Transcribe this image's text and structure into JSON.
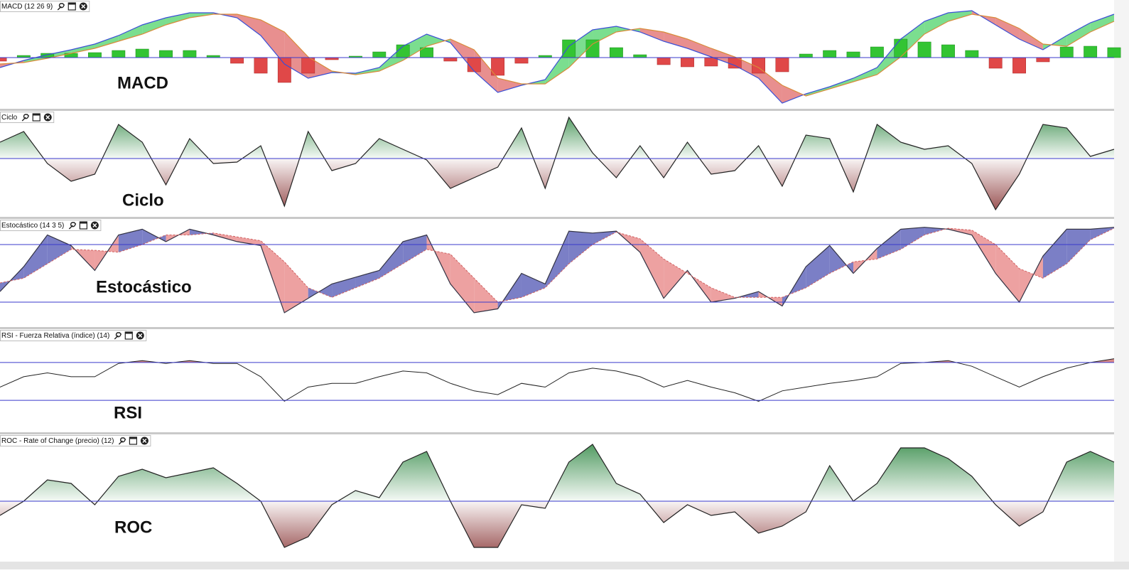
{
  "chart_data": [
    {
      "type": "macd",
      "title": "MACD (12 26 9)",
      "annotation": "MACD",
      "ylim": [
        -70,
        80
      ],
      "hlines": [
        0
      ],
      "hline_color": "#3a3acc",
      "up_color": "#4fd36a",
      "down_color": "#e06a6a",
      "series": [
        {
          "color": "#3b4fd6",
          "values": [
            -14,
            -4,
            4,
            11,
            19,
            31,
            46,
            56,
            63,
            63,
            56,
            31,
            -9,
            -29,
            -21,
            -22,
            -14,
            16,
            33,
            21,
            -19,
            -49,
            -39,
            -31,
            16,
            39,
            44,
            36,
            23,
            13,
            1,
            -11,
            -29,
            -64,
            -51,
            -41,
            -29,
            -14,
            26,
            51,
            63,
            66,
            46,
            26,
            11,
            31,
            49,
            61
          ]
        },
        {
          "color": "#d98b3a",
          "values": [
            -9,
            -7,
            -1,
            6,
            13,
            23,
            33,
            46,
            56,
            61,
            61,
            53,
            36,
            1,
            -19,
            -24,
            -19,
            -4,
            16,
            26,
            11,
            -29,
            -37,
            -37,
            -14,
            19,
            36,
            41,
            36,
            26,
            13,
            1,
            -14,
            -39,
            -54,
            -44,
            -34,
            -24,
            1,
            33,
            51,
            61,
            56,
            41,
            19,
            16,
            36,
            51
          ]
        }
      ],
      "histogram": {
        "up_color": "#33c433",
        "down_color": "#e04848",
        "values": [
          -5,
          3,
          6,
          6,
          7,
          10,
          12,
          10,
          10,
          3,
          -8,
          -22,
          -35,
          -22,
          -3,
          2,
          8,
          18,
          14,
          -5,
          -20,
          -25,
          -8,
          3,
          25,
          25,
          14,
          4,
          -10,
          -13,
          -12,
          -15,
          -22,
          -20,
          5,
          10,
          8,
          15,
          26,
          22,
          18,
          10,
          -15,
          -22,
          -6,
          15,
          16,
          14
        ]
      }
    },
    {
      "type": "area",
      "title": "Ciclo",
      "annotation": "Ciclo",
      "ylim": [
        -80,
        65
      ],
      "hlines": [
        0
      ],
      "hline_color": "#3a3acc",
      "up_color": "#3d8f4f",
      "down_color": "#8b3a3a",
      "series": [
        {
          "color": "#222222",
          "values": [
            23,
            38,
            -7,
            -32,
            -22,
            48,
            23,
            -37,
            28,
            -7,
            -5,
            18,
            -67,
            38,
            -17,
            -7,
            28,
            13,
            -2,
            -42,
            -27,
            -12,
            43,
            -42,
            58,
            8,
            -27,
            18,
            -27,
            23,
            -22,
            -17,
            18,
            -39,
            33,
            28,
            -47,
            48,
            23,
            13,
            18,
            -7,
            -72,
            -22,
            48,
            43,
            3,
            13
          ]
        }
      ]
    },
    {
      "type": "stochastic",
      "title": "Estocástico (14 3 5)",
      "annotation": "Estocástico",
      "ylim": [
        0,
        100
      ],
      "hlines": [
        80,
        20
      ],
      "hline_color": "#3a3acc",
      "up_color": "#5a5fb8",
      "down_color": "#e88a8a",
      "series": [
        {
          "color": "#333344",
          "dashed": false,
          "values": [
            31,
            57,
            90,
            79,
            53,
            90,
            96,
            83,
            96,
            90,
            83,
            79,
            9,
            24,
            39,
            46,
            53,
            83,
            90,
            39,
            9,
            13,
            50,
            39,
            94,
            92,
            94,
            72,
            24,
            53,
            20,
            24,
            31,
            16,
            57,
            79,
            50,
            76,
            96,
            98,
            96,
            90,
            50,
            20,
            68,
            96,
            96,
            98
          ]
        },
        {
          "color": "#d06060",
          "dashed": true,
          "values": [
            40,
            45,
            60,
            75,
            74,
            72,
            80,
            90,
            90,
            92,
            88,
            84,
            62,
            35,
            25,
            35,
            45,
            60,
            75,
            70,
            45,
            20,
            25,
            35,
            60,
            80,
            93,
            86,
            65,
            50,
            35,
            25,
            25,
            25,
            35,
            50,
            62,
            65,
            75,
            90,
            97,
            95,
            80,
            55,
            45,
            60,
            85,
            97
          ]
        }
      ]
    },
    {
      "type": "rsi",
      "title": "RSI - Fuerza Relativa (índice) (14)",
      "annotation": "RSI",
      "ylim": [
        0,
        100
      ],
      "hlines": [
        70,
        30
      ],
      "hline_color": "#3a3acc",
      "overbought_color": "#d98a8a",
      "oversold_color": "#5cb85c",
      "series": [
        {
          "color": "#222222",
          "values": [
            44,
            55,
            59,
            55,
            55,
            69,
            72,
            69,
            72,
            69,
            69,
            55,
            29,
            44,
            48,
            48,
            55,
            61,
            59,
            48,
            40,
            36,
            48,
            44,
            59,
            64,
            61,
            55,
            44,
            51,
            44,
            38,
            29,
            40,
            44,
            48,
            51,
            55,
            69,
            70,
            72,
            66,
            55,
            44,
            55,
            64,
            70,
            74
          ]
        }
      ]
    },
    {
      "type": "area",
      "title": "ROC - Rate of Change (precio) (12)",
      "annotation": "ROC",
      "ylim": [
        -82,
        86
      ],
      "hlines": [
        0
      ],
      "hline_color": "#3a3acc",
      "up_color": "#3d8f4f",
      "down_color": "#8b3a3a",
      "series": [
        {
          "color": "#222222",
          "values": [
            -20,
            0,
            30,
            25,
            -5,
            35,
            45,
            33,
            40,
            47,
            25,
            0,
            -65,
            -50,
            -5,
            15,
            5,
            55,
            70,
            0,
            -65,
            -65,
            -5,
            -10,
            55,
            80,
            25,
            10,
            -30,
            -5,
            -20,
            -15,
            -45,
            -35,
            -15,
            50,
            0,
            25,
            75,
            75,
            60,
            35,
            -5,
            -35,
            -15,
            55,
            70,
            55
          ]
        }
      ]
    }
  ]
}
